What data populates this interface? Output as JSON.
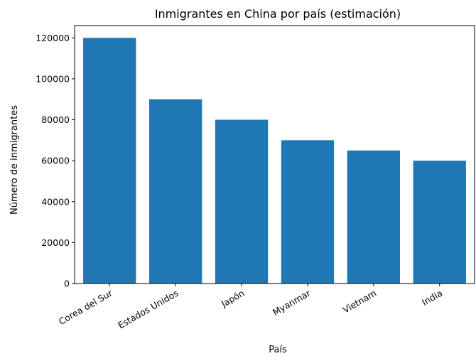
{
  "chart_data": {
    "type": "bar",
    "title": "Inmigrantes en China por país (estimación)",
    "xlabel": "País",
    "ylabel": "Número de inmigrantes",
    "categories": [
      "Corea del Sur",
      "Estados Unidos",
      "Japón",
      "Myanmar",
      "Vietnam",
      "India"
    ],
    "values": [
      120000,
      90000,
      80000,
      70000,
      65000,
      60000
    ],
    "ylim": [
      0,
      126000
    ],
    "yticks": [
      0,
      20000,
      40000,
      60000,
      80000,
      100000,
      120000
    ],
    "bar_color": "#1f77b4",
    "grid": false,
    "x_tick_rotation": 30
  }
}
